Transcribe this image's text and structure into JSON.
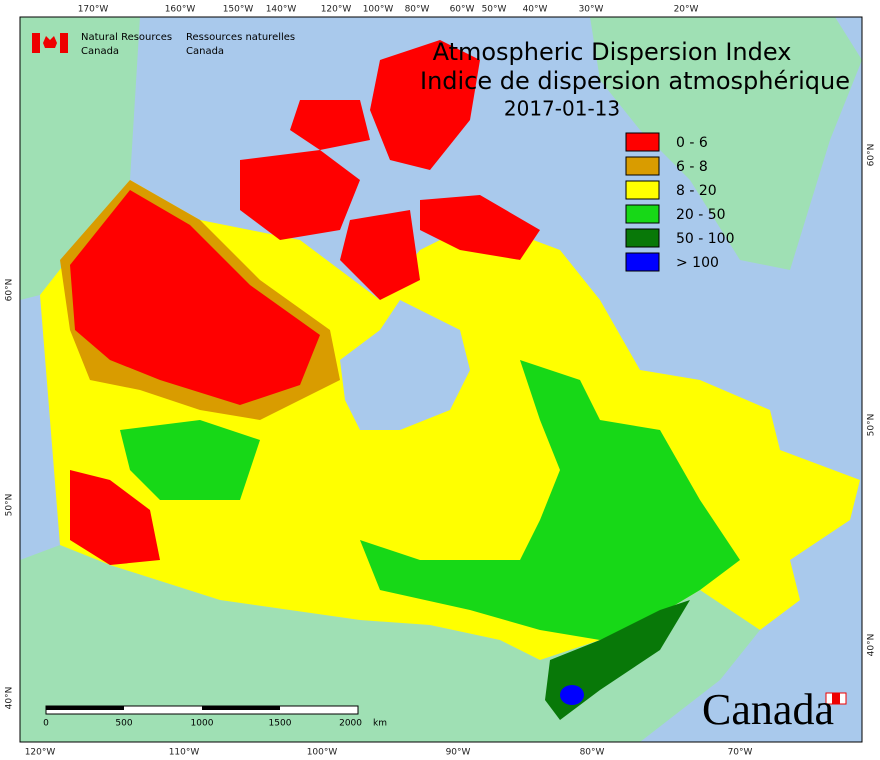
{
  "header": {
    "agency_en": [
      "Natural Resources",
      "Canada"
    ],
    "agency_fr": [
      "Ressources naturelles",
      "Canada"
    ]
  },
  "title": [
    "Atmospheric Dispersion Index",
    "Indice de dispersion atmosphérique"
  ],
  "date": "2017-01-13",
  "legend": [
    {
      "label": "0 - 6",
      "color": "#ff0000"
    },
    {
      "label": "6 - 8",
      "color": "#d99c00"
    },
    {
      "label": "8 - 20",
      "color": "#ffff00"
    },
    {
      "label": "20 - 50",
      "color": "#17d817"
    },
    {
      "label": "50 - 100",
      "color": "#087808"
    },
    {
      "label": "> 100",
      "color": "#0000ff"
    }
  ],
  "graticule": {
    "top": [
      "170°W",
      "160°W",
      "150°W",
      "140°W",
      "120°W",
      "100°W",
      "80°W",
      "60°W",
      "50°W",
      "40°W",
      "30°W",
      "20°W"
    ],
    "bottom": [
      "120°W",
      "110°W",
      "100°W",
      "90°W",
      "80°W",
      "70°W"
    ],
    "left": [
      "60°N",
      "50°N",
      "40°N"
    ],
    "right": [
      "60°N",
      "50°N",
      "40°N"
    ]
  },
  "scale_bar": {
    "labels": [
      "0",
      "500",
      "1000",
      "1500",
      "2000"
    ],
    "unit": "km"
  },
  "wordmark": "Canada"
}
